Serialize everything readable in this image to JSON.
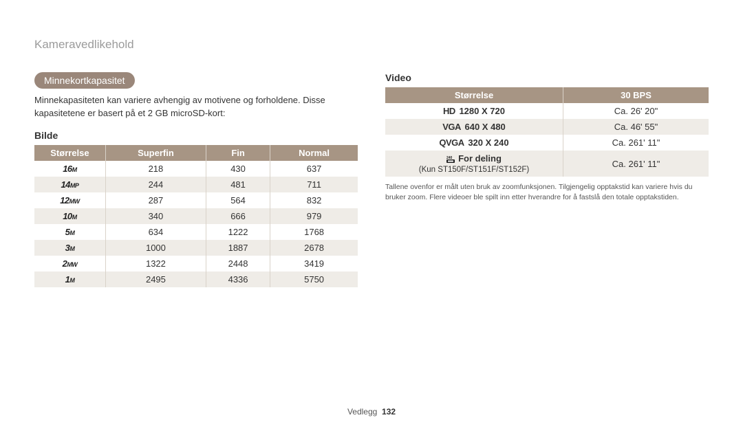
{
  "page_title": "Kameravedlikehold",
  "sections": {
    "pill": "Minnekortkapasitet",
    "intro": "Minnekapasiteten kan variere avhengig av motivene og forholdene. Disse kapasitetene er basert på et 2 GB microSD-kort:",
    "image_heading": "Bilde",
    "video_heading": "Video",
    "note": "Tallene ovenfor er målt uten bruk av zoomfunksjonen. Tilgjengelig opptakstid kan variere hvis du bruker zoom. Flere videoer ble spilt inn etter hverandre for å fastslå den totale opptakstiden."
  },
  "image_table": {
    "headers": [
      "Størrelse",
      "Superfin",
      "Fin",
      "Normal"
    ],
    "rows": [
      {
        "size_big": "16",
        "size_small": "M",
        "vals": [
          "218",
          "430",
          "637"
        ]
      },
      {
        "size_big": "14",
        "size_small": "MP",
        "vals": [
          "244",
          "481",
          "711"
        ]
      },
      {
        "size_big": "12",
        "size_small": "MW",
        "vals": [
          "287",
          "564",
          "832"
        ]
      },
      {
        "size_big": "10",
        "size_small": "M",
        "vals": [
          "340",
          "666",
          "979"
        ]
      },
      {
        "size_big": "5",
        "size_small": "M",
        "vals": [
          "634",
          "1222",
          "1768"
        ]
      },
      {
        "size_big": "3",
        "size_small": "M",
        "vals": [
          "1000",
          "1887",
          "2678"
        ]
      },
      {
        "size_big": "2",
        "size_small": "MW",
        "vals": [
          "1322",
          "2448",
          "3419"
        ]
      },
      {
        "size_big": "1",
        "size_small": "M",
        "vals": [
          "2495",
          "4336",
          "5750"
        ]
      }
    ]
  },
  "video_table": {
    "headers": [
      "Størrelse",
      "30 BPS"
    ],
    "rows": [
      {
        "prefix": "HD",
        "res": "1280 X 720",
        "sub": "",
        "dur": "Ca. 26' 20\""
      },
      {
        "prefix": "VGA",
        "res": "640 X 480",
        "sub": "",
        "dur": "Ca. 46' 55\""
      },
      {
        "prefix": "QVGA",
        "res": "320 X 240",
        "sub": "",
        "dur": "Ca. 261' 11\""
      },
      {
        "prefix": "",
        "res": "For deling",
        "sub": "(Kun ST150F/ST151F/ST152F)",
        "dur": "Ca. 261' 11\""
      }
    ]
  },
  "footer": {
    "section": "Vedlegg",
    "page": "132"
  },
  "colors": {
    "header_bg": "#a79584",
    "pill_bg": "#9a877a",
    "row_alt": "#efece7",
    "title_gray": "#9b9b9b"
  }
}
